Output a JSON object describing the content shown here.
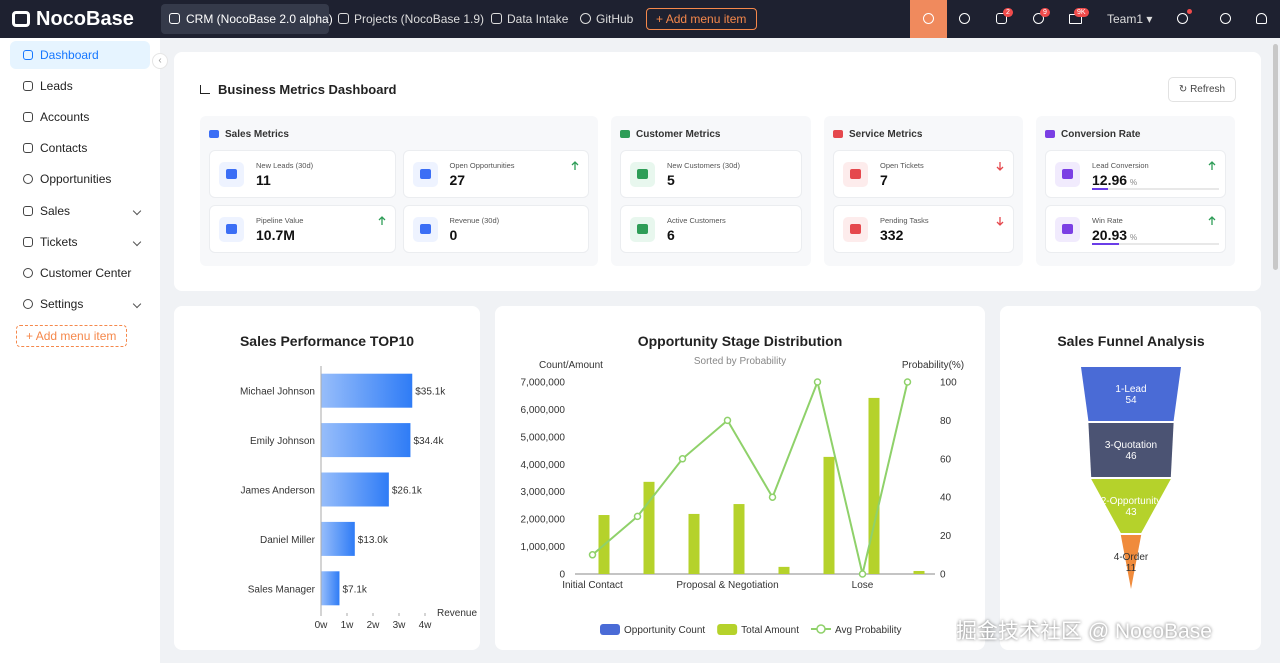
{
  "nav": {
    "brand": "NocoBase",
    "tabs": [
      "CRM (NocoBase 2.0 alpha)",
      "Projects (NocoBase 1.9)",
      "Data Intake",
      "GitHub"
    ],
    "add": "Add menu item",
    "badges": [
      "2",
      "9",
      "9K"
    ],
    "user": "Team1"
  },
  "sidebar": {
    "items": [
      "Dashboard",
      "Leads",
      "Accounts",
      "Contacts",
      "Opportunities",
      "Sales",
      "Tickets",
      "Customer Center",
      "Settings"
    ],
    "add": "Add menu item"
  },
  "dashboard": {
    "title": "Business Metrics Dashboard",
    "refresh": "Refresh",
    "groups": [
      {
        "title": "Sales Metrics",
        "metrics": [
          {
            "label": "New Leads (30d)",
            "value": "11"
          },
          {
            "label": "Open Opportunities",
            "value": "27",
            "trend": "up"
          },
          {
            "label": "Pipeline Value",
            "value": "10.7M",
            "trend": "up"
          },
          {
            "label": "Revenue (30d)",
            "value": "0"
          }
        ]
      },
      {
        "title": "Customer Metrics",
        "metrics": [
          {
            "label": "New Customers (30d)",
            "value": "5"
          },
          {
            "label": "Active Customers",
            "value": "6"
          }
        ]
      },
      {
        "title": "Service Metrics",
        "metrics": [
          {
            "label": "Open Tickets",
            "value": "7",
            "trend": "down"
          },
          {
            "label": "Pending Tasks",
            "value": "332",
            "trend": "down"
          }
        ]
      },
      {
        "title": "Conversion Rate",
        "metrics": [
          {
            "label": "Lead Conversion",
            "value": 12.96,
            "unit": "%",
            "trend": "up"
          },
          {
            "label": "Win Rate",
            "value": 20.93,
            "unit": "%",
            "trend": "up"
          }
        ]
      }
    ]
  },
  "chart_data": [
    {
      "type": "hbar",
      "title": "Sales Performance TOP10",
      "categories": [
        "Michael Johnson",
        "Emily Johnson",
        "James Anderson",
        "Daniel Miller",
        "Sales Manager"
      ],
      "values": [
        35100,
        34400,
        26100,
        13000,
        7100
      ],
      "value_labels": [
        "$35.1k",
        "$34.4k",
        "$26.1k",
        "$13.0k",
        "$7.1k"
      ],
      "color": "#2f7cf6",
      "xlim": [
        0,
        40000
      ],
      "xticks": [
        {
          "value": 0,
          "label": "0w"
        },
        {
          "value": 10000,
          "label": "1w"
        },
        {
          "value": 20000,
          "label": "2w"
        },
        {
          "value": 30000,
          "label": "3w"
        },
        {
          "value": 40000,
          "label": "4w"
        }
      ],
      "x_label": "Revenue"
    },
    {
      "type": "combo",
      "title": "Opportunity Stage Distribution",
      "subtitle": "Sorted by Probability",
      "y_label": "Count/Amount",
      "y2_label": "Probability(%)",
      "categories": [
        "Initial Contact",
        null,
        null,
        "Proposal & Negotiation",
        null,
        null,
        "Lose",
        null
      ],
      "series": [
        {
          "name": "Opportunity Count",
          "type": "bar",
          "color": "#4a6bd6",
          "values": [
            0,
            0,
            0,
            0,
            0,
            0,
            0,
            0
          ]
        },
        {
          "name": "Total Amount",
          "type": "bar",
          "color": "#b5d22b",
          "values": [
            2150000,
            3360000,
            2190000,
            2550000,
            260000,
            4270000,
            6420000,
            110000
          ]
        },
        {
          "name": "Avg Probability",
          "type": "line",
          "axis": "y2",
          "color": "#8fd16a",
          "values": [
            10,
            30,
            60,
            80,
            40,
            100,
            0,
            100
          ]
        }
      ],
      "ylim": [
        0,
        7000000
      ],
      "yticks": [
        0,
        {
          "value": 1000000,
          "label": "1,000,000"
        },
        {
          "value": 2000000,
          "label": "2,000,000"
        },
        {
          "value": 3000000,
          "label": "3,000,000"
        },
        {
          "value": 4000000,
          "label": "4,000,000"
        },
        {
          "value": 5000000,
          "label": "5,000,000"
        },
        {
          "value": 6000000,
          "label": "6,000,000"
        },
        {
          "value": 7000000,
          "label": "7,000,000"
        }
      ],
      "y2lim": [
        0,
        100
      ],
      "y2ticks": [
        0,
        20,
        40,
        60,
        80,
        100
      ]
    },
    {
      "type": "funnel",
      "title": "Sales Funnel Analysis",
      "categories": [
        "1-Lead",
        "3-Quotation",
        "2-Opportunity",
        "4-Order"
      ],
      "values": [
        54,
        46,
        43,
        11
      ],
      "colors": [
        "#4a6bd6",
        "#4b5373",
        "#b5d22b",
        "#f08b3c"
      ]
    }
  ],
  "watermark": "掘金技术社区 @ NocoBase"
}
